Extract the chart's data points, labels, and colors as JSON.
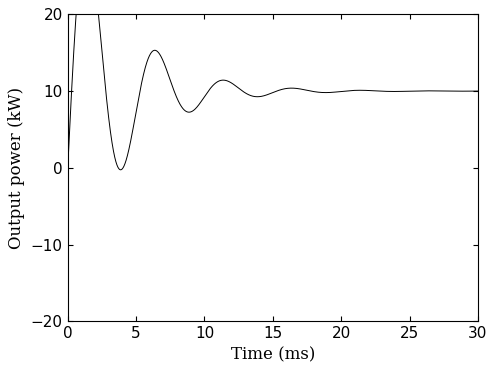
{
  "title": "",
  "xlabel": "Time (ms)",
  "ylabel": "Output power (kW)",
  "xlim": [
    0,
    30
  ],
  "ylim": [
    -20,
    20
  ],
  "xticks": [
    0,
    5,
    10,
    15,
    20,
    25,
    30
  ],
  "yticks": [
    -20,
    -10,
    0,
    10,
    20
  ],
  "steady_state": 10.0,
  "oscillation_freq_hz": 200,
  "time_total_ms": 30,
  "num_points": 15000,
  "damping_tau_ms": 3.8,
  "initial_amplitude": 29.0,
  "line_color": "#000000",
  "line_width": 0.7,
  "background_color": "#ffffff",
  "font_size_label": 12,
  "font_size_tick": 11
}
